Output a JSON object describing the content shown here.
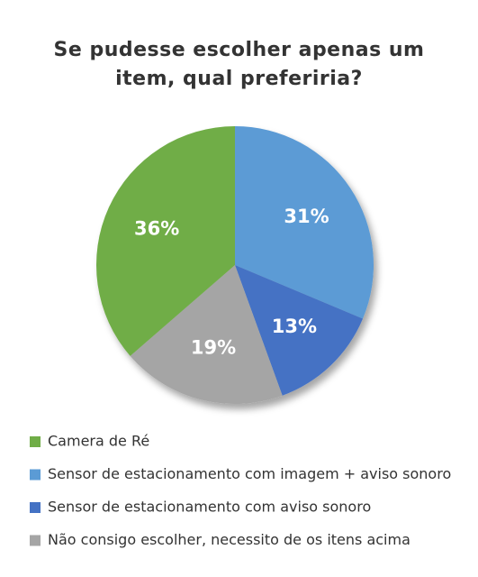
{
  "chart_data": {
    "type": "pie",
    "title": "Se pudesse escolher apenas um item, qual preferiria?",
    "categories": [
      "Camera de Ré",
      "Sensor de estacionamento com imagem + aviso sonoro",
      "Sensor de estacionamento com aviso sonoro",
      "Não consigo escolher, necessito de os itens acima"
    ],
    "values": [
      36,
      31,
      13,
      19
    ],
    "value_labels": [
      "36%",
      "31%",
      "13%",
      "19%"
    ],
    "colors": [
      "#70ad47",
      "#5b9bd5",
      "#4472c4",
      "#a5a5a5"
    ],
    "legend": "bottom"
  }
}
